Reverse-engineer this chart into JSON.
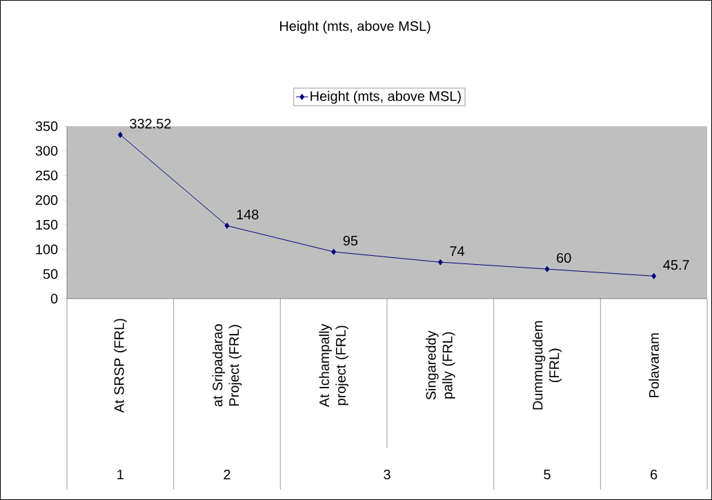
{
  "chart_data": {
    "type": "line",
    "title": "Height (mts, above MSL)",
    "categories": [
      "At SRSP (FRL)",
      "at Sripadarao Project (FRL)",
      "At Ichampally project (FRL)",
      "Singareddy pally (FRL)",
      "Dummugudem (FRL)",
      "Polavaram"
    ],
    "series": [
      {
        "name": "Height (mts, above MSL)",
        "color": "#000080",
        "values": [
          332.52,
          148,
          95,
          74,
          60,
          45.7
        ]
      }
    ],
    "annotations": [
      "1",
      "2",
      "3",
      "5",
      "6"
    ],
    "ylim": [
      0,
      350
    ],
    "yticks": [
      0,
      50,
      100,
      150,
      200,
      250,
      300,
      350
    ],
    "data_labels": true,
    "legend": "top",
    "grid": false,
    "marker": "diamond",
    "line_style": "solid"
  }
}
